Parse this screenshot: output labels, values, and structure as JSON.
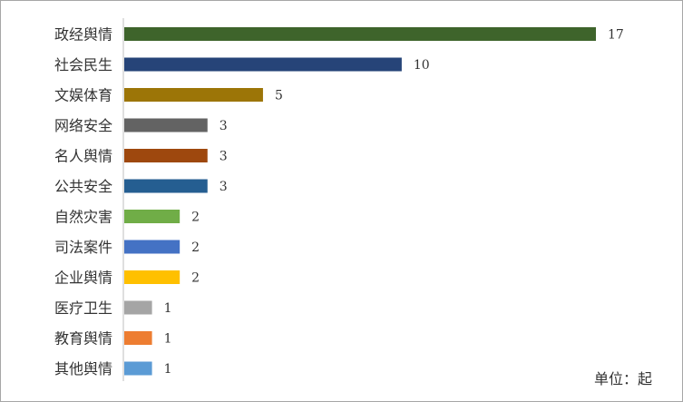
{
  "chart_data": {
    "type": "bar",
    "orientation": "horizontal",
    "categories": [
      "政经舆情",
      "社会民生",
      "文娱体育",
      "网络安全",
      "名人舆情",
      "公共安全",
      "自然灾害",
      "司法案件",
      "企业舆情",
      "医疗卫生",
      "教育舆情",
      "其他舆情"
    ],
    "values": [
      17,
      10,
      5,
      3,
      3,
      3,
      2,
      2,
      2,
      1,
      1,
      1
    ],
    "colors": [
      "#3e642b",
      "#264478",
      "#9c7507",
      "#636363",
      "#9e480e",
      "#255e91",
      "#70ad47",
      "#4472c4",
      "#ffc000",
      "#a5a5a5",
      "#ed7d31",
      "#5b9bd5"
    ],
    "xlim": [
      0,
      17
    ],
    "grid": false,
    "legend": "none",
    "unit_label": "单位：起"
  }
}
